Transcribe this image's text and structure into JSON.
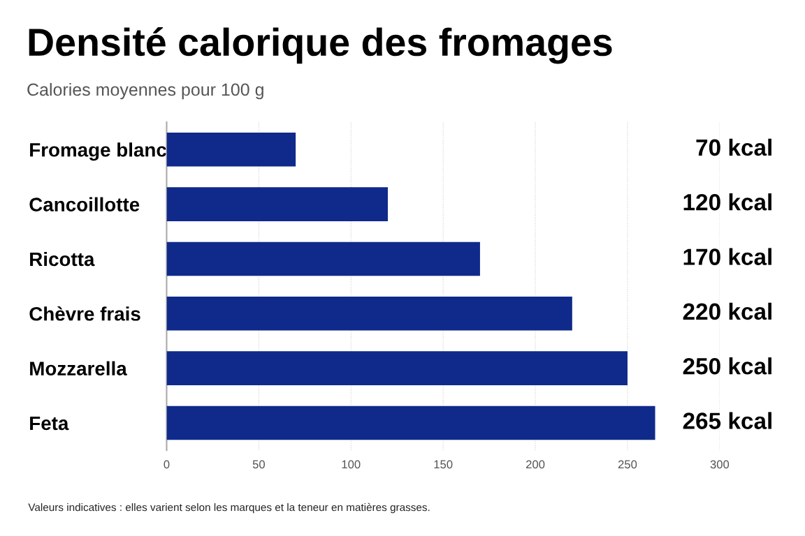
{
  "chart_data": {
    "type": "bar",
    "orientation": "horizontal",
    "title": "Densité calorique des fromages",
    "subtitle": "Calories moyennes pour 100 g",
    "categories": [
      "Fromage blanc",
      "Cancoillotte",
      "Ricotta",
      "Chèvre frais",
      "Mozzarella",
      "Feta"
    ],
    "values": [
      70,
      120,
      170,
      220,
      250,
      265
    ],
    "value_labels": [
      "70 kcal",
      "120 kcal",
      "170 kcal",
      "220 kcal",
      "250 kcal",
      "265 kcal"
    ],
    "color": "#0f2a8a",
    "xlim": [
      0,
      300
    ],
    "xticks": [
      0,
      50,
      100,
      150,
      200,
      250,
      300
    ],
    "grid": "x",
    "annotations": [
      "Valeurs indicatives : elles varient selon les marques et la teneur en matières grasses."
    ]
  }
}
